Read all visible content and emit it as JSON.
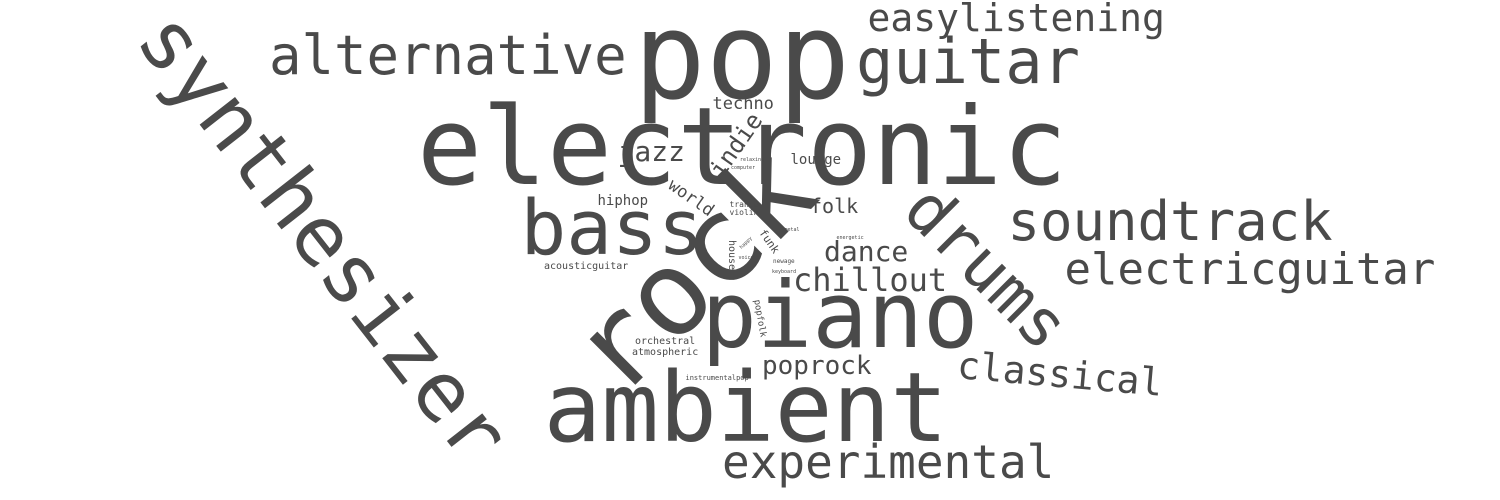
{
  "text_color": "#4a4a4a",
  "words": [
    {
      "text": "electronic",
      "weight": 1.0
    },
    {
      "text": "pop",
      "weight": 0.8
    },
    {
      "text": "rock",
      "weight": 0.78
    },
    {
      "text": "ambient",
      "weight": 0.7
    },
    {
      "text": "synthesizer",
      "weight": 0.62
    },
    {
      "text": "piano",
      "weight": 0.62
    },
    {
      "text": "bass",
      "weight": 0.55
    },
    {
      "text": "drums",
      "weight": 0.52
    },
    {
      "text": "guitar",
      "weight": 0.5
    },
    {
      "text": "alternative",
      "weight": 0.42
    },
    {
      "text": "soundtrack",
      "weight": 0.42
    },
    {
      "text": "electricguitar",
      "weight": 0.38
    },
    {
      "text": "experimental",
      "weight": 0.36
    },
    {
      "text": "easylistening",
      "weight": 0.3
    },
    {
      "text": "classical",
      "weight": 0.3
    },
    {
      "text": "chillout",
      "weight": 0.28
    },
    {
      "text": "dance",
      "weight": 0.26
    },
    {
      "text": "poprock",
      "weight": 0.24
    },
    {
      "text": "jazz",
      "weight": 0.24
    },
    {
      "text": "indie",
      "weight": 0.22
    },
    {
      "text": "folk",
      "weight": 0.18
    },
    {
      "text": "techno",
      "weight": 0.16
    },
    {
      "text": "world",
      "weight": 0.16
    },
    {
      "text": "lounge",
      "weight": 0.14
    },
    {
      "text": "hiphop",
      "weight": 0.14
    },
    {
      "text": "funk",
      "weight": 0.11
    },
    {
      "text": "house",
      "weight": 0.1
    },
    {
      "text": "popfolk",
      "weight": 0.1
    },
    {
      "text": "acousticguitar",
      "weight": 0.1
    },
    {
      "text": "orchestral",
      "weight": 0.1
    },
    {
      "text": "atmospheric",
      "weight": 0.1
    },
    {
      "text": "trance",
      "weight": 0.09
    },
    {
      "text": "violin",
      "weight": 0.09
    },
    {
      "text": "instrumentalpop",
      "weight": 0.06
    },
    {
      "text": "newage",
      "weight": 0.05
    },
    {
      "text": "voice",
      "weight": 0.04
    },
    {
      "text": "keyboard",
      "weight": 0.04
    },
    {
      "text": "happy",
      "weight": 0.04
    },
    {
      "text": "energetic",
      "weight": 0.04
    },
    {
      "text": "metal",
      "weight": 0.04
    },
    {
      "text": "computer",
      "weight": 0.04
    },
    {
      "text": "relaxing",
      "weight": 0.04
    }
  ]
}
